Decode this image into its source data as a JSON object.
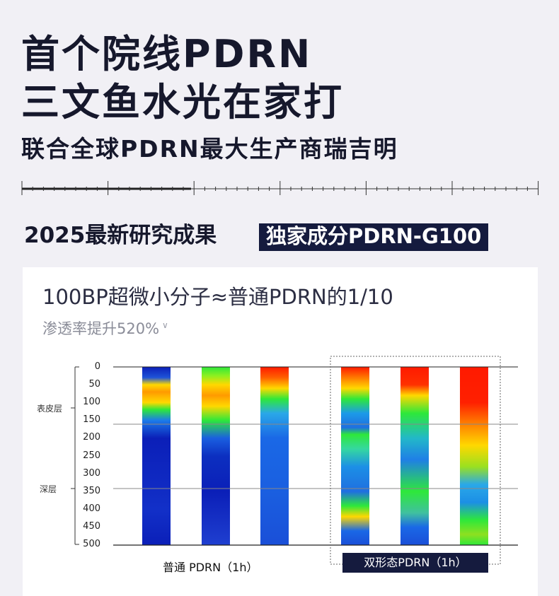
{
  "header": {
    "title_line1": "首个院线PDRN",
    "title_line2": "三文鱼水光在家打",
    "subtitle": "联合全球PDRN最大生产商瑞吉明"
  },
  "research": {
    "label": "2025最新研究成果",
    "badge": "独家成分PDRN-G100"
  },
  "panel": {
    "title": "100BP超微小分子≈普通PDRN的1/10",
    "subtitle": "渗透率提升520%",
    "layer_top": "表皮层",
    "layer_deep": "深层",
    "group_normal_label": "普通 PDRN（1h）",
    "group_dual_label": "双形态PDRN（1h）"
  },
  "chart_data": {
    "type": "heatmap",
    "y_ticks": [
      "0",
      "50",
      "100",
      "150",
      "200",
      "250",
      "300",
      "350",
      "400",
      "450",
      "500"
    ],
    "ylim": [
      0,
      500
    ],
    "groups": [
      "普通 PDRN（1h）",
      "双形态PDRN（1h）"
    ],
    "columns_per_group": 3,
    "colors": {
      "high": "#ff1a00",
      "mid_high": "#ffd800",
      "mid": "#2ee83a",
      "low": "#1a5fe0",
      "lowest": "#0b1fb8"
    }
  }
}
